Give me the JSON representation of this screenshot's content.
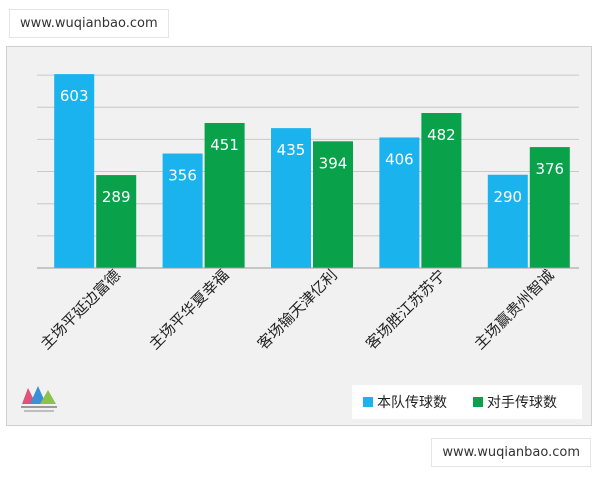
{
  "watermark_top": "www.wuqianbao.com",
  "watermark_bottom": "www.wuqianbao.com",
  "colors": {
    "home": "#1ab3ee",
    "opponent": "#0aa14b",
    "grid": "#c8c8c8",
    "bg": "#f1f1f1"
  },
  "chart_data": {
    "type": "bar",
    "title": "",
    "xlabel": "",
    "ylabel": "",
    "ylim": [
      0,
      650
    ],
    "grid": true,
    "legend_position": "bottom-right",
    "categories": [
      "主场平延边富德",
      "主场平华夏幸福",
      "客场输天津亿利",
      "客场胜江苏苏宁",
      "主场赢贵州智诚"
    ],
    "series": [
      {
        "name": "本队传球数",
        "color": "#1ab3ee",
        "values": [
          603,
          356,
          435,
          406,
          290
        ]
      },
      {
        "name": "对手传球数",
        "color": "#0aa14b",
        "values": [
          289,
          451,
          394,
          482,
          376
        ]
      }
    ]
  }
}
